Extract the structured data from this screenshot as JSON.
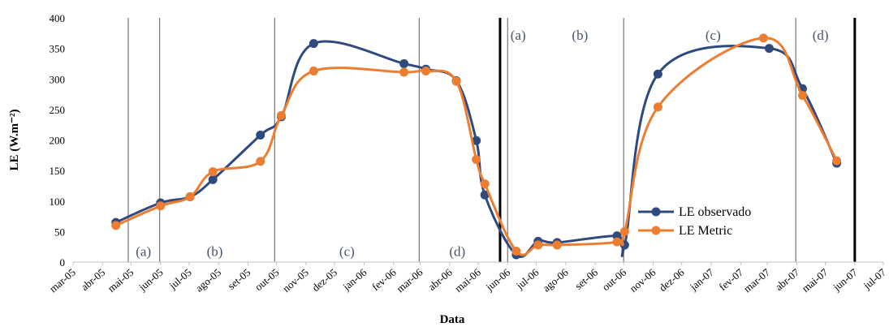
{
  "chart_data": {
    "type": "line",
    "title": "",
    "xlabel": "Data",
    "ylabel": "LE (W.m⁻²)",
    "ylim": [
      0,
      400
    ],
    "yticks": [
      0,
      50,
      100,
      150,
      200,
      250,
      300,
      350,
      400
    ],
    "xlim": [
      "2005-03-01",
      "2007-07-01"
    ],
    "x_tick_labels": [
      "mar-05",
      "abr-05",
      "mai-05",
      "jun-05",
      "jul-05",
      "ago-05",
      "set-05",
      "out-05",
      "nov-05",
      "dez-05",
      "jan-06",
      "fev-06",
      "mar-06",
      "abr-06",
      "mai-06",
      "jun-06",
      "jul-06",
      "ago-06",
      "set-06",
      "out-06",
      "nov-06",
      "dez-06",
      "jan-07",
      "fev-07",
      "mar-07",
      "abr-07",
      "mai-07",
      "jun-07",
      "jul-07"
    ],
    "grid": false,
    "legend_position": "bottom-right",
    "vertical_lines": [
      {
        "date": "2005-04-28",
        "style": "thin"
      },
      {
        "date": "2005-05-31",
        "style": "thin"
      },
      {
        "date": "2005-09-29",
        "style": "thin"
      },
      {
        "date": "2006-02-28",
        "style": "thin"
      },
      {
        "date": "2006-05-24",
        "style": "thick"
      },
      {
        "date": "2006-06-01",
        "style": "thin"
      },
      {
        "date": "2006-10-01",
        "style": "thin"
      },
      {
        "date": "2007-03-31",
        "style": "thin"
      },
      {
        "date": "2007-06-01",
        "style": "thick"
      }
    ],
    "phase_labels": [
      {
        "text": "(a)",
        "date": "2005-05-14",
        "y": 18
      },
      {
        "text": "(b)",
        "date": "2005-07-28",
        "y": 18
      },
      {
        "text": "(c)",
        "date": "2005-12-14",
        "y": 18
      },
      {
        "text": "(d)",
        "date": "2006-04-09",
        "y": 18
      },
      {
        "text": "(a)",
        "date": "2006-06-12",
        "y": 372
      },
      {
        "text": "(b)",
        "date": "2006-08-16",
        "y": 372
      },
      {
        "text": "(c)",
        "date": "2007-01-03",
        "y": 372
      },
      {
        "text": "(d)",
        "date": "2007-04-26",
        "y": 372
      }
    ],
    "series": [
      {
        "name": "LE observado",
        "color": "#2e4a7e",
        "points": [
          [
            "2005-04-15",
            65
          ],
          [
            "2005-06-01",
            97
          ],
          [
            "2005-07-02",
            107
          ],
          [
            "2005-07-26",
            135
          ],
          [
            "2005-09-14",
            208
          ],
          [
            "2005-10-06",
            238
          ],
          [
            "2005-11-09",
            358
          ],
          [
            "2006-02-12",
            325
          ],
          [
            "2006-03-07",
            316
          ],
          [
            "2006-04-08",
            297
          ],
          [
            "2006-04-29",
            199
          ],
          [
            "2006-05-08",
            110
          ],
          [
            "2006-06-10",
            12
          ],
          [
            "2006-07-03",
            34
          ],
          [
            "2006-07-23",
            32
          ],
          [
            "2006-09-24",
            43
          ],
          [
            "2006-10-02",
            28
          ],
          [
            "2006-11-06",
            308
          ],
          [
            "2007-03-03",
            350
          ],
          [
            "2007-04-07",
            284
          ],
          [
            "2007-05-13",
            162
          ]
        ]
      },
      {
        "name": "LE Metric",
        "color": "#ed7d31",
        "points": [
          [
            "2005-04-15",
            60
          ],
          [
            "2005-06-01",
            92
          ],
          [
            "2005-07-02",
            107
          ],
          [
            "2005-07-26",
            148
          ],
          [
            "2005-09-14",
            165
          ],
          [
            "2005-10-06",
            240
          ],
          [
            "2005-11-09",
            313
          ],
          [
            "2006-02-12",
            311
          ],
          [
            "2006-03-07",
            313
          ],
          [
            "2006-04-08",
            296
          ],
          [
            "2006-04-29",
            168
          ],
          [
            "2006-05-08",
            128
          ],
          [
            "2006-06-10",
            18
          ],
          [
            "2006-07-03",
            28
          ],
          [
            "2006-07-23",
            28
          ],
          [
            "2006-09-24",
            33
          ],
          [
            "2006-10-02",
            50
          ],
          [
            "2006-11-06",
            254
          ],
          [
            "2007-02-25",
            367
          ],
          [
            "2007-04-07",
            273
          ],
          [
            "2007-05-13",
            166
          ]
        ]
      }
    ]
  }
}
